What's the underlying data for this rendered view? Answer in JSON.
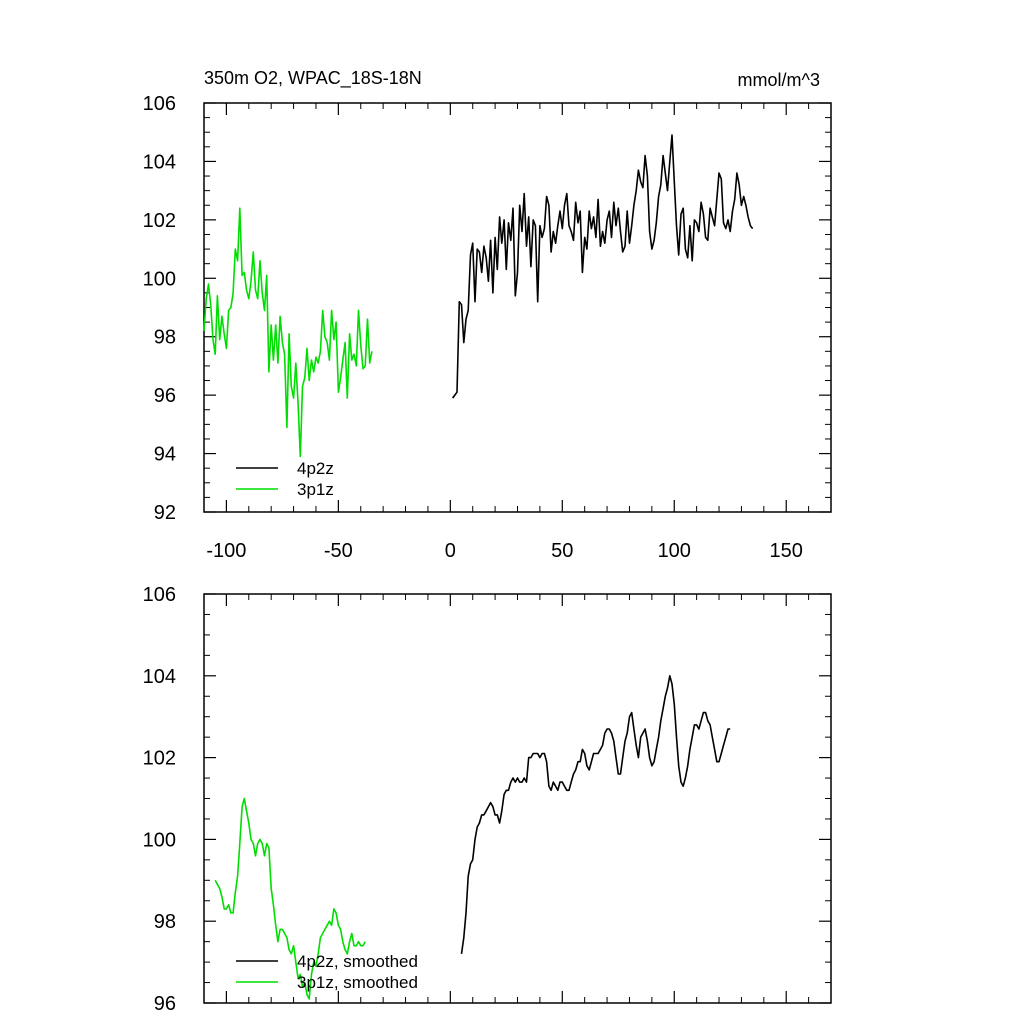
{
  "colors": {
    "series_4p2z": "#000000",
    "series_3p1z": "#00dd00",
    "frame": "#000000"
  },
  "chart_data": [
    {
      "type": "line",
      "title_left": "350m O2, WPAC_18S-18N",
      "title_right": "mmol/m^3",
      "xlim": [
        -110,
        170
      ],
      "ylim": [
        92,
        106
      ],
      "xticks": [
        -100,
        -50,
        0,
        50,
        100,
        150
      ],
      "xtick_labels": [
        "-100",
        "-50",
        "0",
        "50",
        "100",
        "150"
      ],
      "yticks": [
        92,
        94,
        96,
        98,
        100,
        102,
        104,
        106
      ],
      "ytick_labels": [
        "92",
        "94",
        "96",
        "98",
        "100",
        "102",
        "104",
        "106"
      ],
      "legend": [
        "4p2z",
        "3p1z"
      ],
      "series": [
        {
          "name": "3p1z",
          "color": "#00dd00",
          "x0": -110,
          "values": [
            98.2,
            99.3,
            99.8,
            99.1,
            97.9,
            97.4,
            99.4,
            97.9,
            98.7,
            98.1,
            97.6,
            98.9,
            99.0,
            99.5,
            101.0,
            100.6,
            102.4,
            100.1,
            100.2,
            99.6,
            99.3,
            99.9,
            100.9,
            99.6,
            99.3,
            100.6,
            99.5,
            98.9,
            100.1,
            96.8,
            98.4,
            97.2,
            98.4,
            97.1,
            98.7,
            97.8,
            97.4,
            94.9,
            98.1,
            96.3,
            95.9,
            97.1,
            95.7,
            93.9,
            96.3,
            96.6,
            97.6,
            96.5,
            97.2,
            96.8,
            97.3,
            97.1,
            97.5,
            98.9,
            98.0,
            97.8,
            97.2,
            98.9,
            97.9,
            98.5,
            96.1,
            96.6,
            97.2,
            97.8,
            95.9,
            98.1,
            97.2,
            97.4,
            97.0,
            98.9,
            97.7,
            96.9,
            97.0,
            98.6,
            97.1,
            97.5
          ]
        },
        {
          "name": "4p2z",
          "color": "#000000",
          "x0": 1,
          "values": [
            95.9,
            96.0,
            96.1,
            99.2,
            99.1,
            97.8,
            98.6,
            98.9,
            100.8,
            101.2,
            99.2,
            101.0,
            100.9,
            100.2,
            101.1,
            100.7,
            99.9,
            101.3,
            99.5,
            101.4,
            100.3,
            102.1,
            101.2,
            102.0,
            100.3,
            101.9,
            101.3,
            102.4,
            99.4,
            100.2,
            102.5,
            101.6,
            102.9,
            101.1,
            102.1,
            100.4,
            102.0,
            101.8,
            99.2,
            101.8,
            101.4,
            101.7,
            102.8,
            102.5,
            100.9,
            101.6,
            101.2,
            101.8,
            102.3,
            101.7,
            102.5,
            102.9,
            101.8,
            101.6,
            101.3,
            102.6,
            101.9,
            102.3,
            100.2,
            101.4,
            101.0,
            102.3,
            101.7,
            102.1,
            101.4,
            102.7,
            101.1,
            101.6,
            101.2,
            102.0,
            102.3,
            101.4,
            102.6,
            101.8,
            102.4,
            101.6,
            100.9,
            101.1,
            102.3,
            101.2,
            101.8,
            102.5,
            103.0,
            103.7,
            103.3,
            103.1,
            104.2,
            103.5,
            101.6,
            101.0,
            101.3,
            101.9,
            102.8,
            103.2,
            104.2,
            103.6,
            103.0,
            104.0,
            104.9,
            103.3,
            101.8,
            100.8,
            102.2,
            102.4,
            101.0,
            100.7,
            101.8,
            100.6,
            102.0,
            101.9,
            101.6,
            102.6,
            102.2,
            101.4,
            101.3,
            102.4,
            102.1,
            101.8,
            102.7,
            103.6,
            103.4,
            101.9,
            101.7,
            102.0,
            101.6,
            102.3,
            102.7,
            103.6,
            103.2,
            102.5,
            102.8,
            102.5,
            102.1,
            101.8,
            101.7
          ]
        }
      ]
    },
    {
      "type": "line",
      "title_left": "",
      "title_right": "",
      "xlim": [
        -110,
        170
      ],
      "ylim": [
        96,
        106
      ],
      "xticks": [
        -100,
        -50,
        0,
        50,
        100,
        150
      ],
      "xtick_labels": [],
      "yticks": [
        96,
        98,
        100,
        102,
        104,
        106
      ],
      "ytick_labels": [
        "96",
        "98",
        "100",
        "102",
        "104",
        "106"
      ],
      "legend": [
        "4p2z, smoothed",
        "3p1z, smoothed"
      ],
      "series": [
        {
          "name": "3p1z, smoothed",
          "color": "#00dd00",
          "x0": -105,
          "values": [
            99.0,
            98.9,
            98.8,
            98.6,
            98.3,
            98.3,
            98.4,
            98.2,
            98.2,
            98.7,
            99.1,
            99.9,
            100.8,
            101.0,
            100.7,
            100.4,
            100.0,
            99.9,
            99.6,
            99.9,
            100.0,
            99.9,
            99.6,
            99.9,
            99.8,
            98.8,
            98.4,
            97.9,
            97.5,
            97.8,
            97.8,
            97.7,
            97.6,
            97.3,
            97.2,
            97.4,
            97.0,
            96.6,
            96.7,
            96.4,
            96.5,
            96.2,
            96.1,
            96.7,
            97.0,
            96.9,
            97.2,
            97.6,
            97.7,
            97.8,
            97.9,
            98.0,
            97.9,
            98.3,
            98.2,
            97.9,
            97.8,
            97.5,
            97.3,
            97.2,
            97.5,
            97.7,
            97.4,
            97.4,
            97.5,
            97.4,
            97.4,
            97.5
          ]
        },
        {
          "name": "4p2z, smoothed",
          "color": "#000000",
          "x0": 5,
          "values": [
            97.2,
            97.6,
            98.2,
            99.1,
            99.4,
            99.5,
            100.0,
            100.3,
            100.4,
            100.6,
            100.6,
            100.7,
            100.8,
            100.9,
            100.8,
            100.6,
            100.6,
            100.4,
            100.7,
            101.1,
            101.2,
            101.2,
            101.4,
            101.5,
            101.4,
            101.5,
            101.4,
            101.4,
            101.5,
            101.4,
            102.0,
            102.0,
            102.1,
            102.1,
            102.1,
            102.0,
            102.1,
            102.1,
            101.9,
            101.3,
            101.2,
            101.4,
            101.3,
            101.2,
            101.4,
            101.4,
            101.3,
            101.2,
            101.2,
            101.4,
            101.6,
            101.7,
            101.9,
            101.9,
            102.2,
            102.1,
            101.8,
            101.7,
            101.9,
            102.1,
            102.1,
            102.1,
            102.2,
            102.3,
            102.6,
            102.7,
            102.7,
            102.6,
            102.4,
            102.0,
            101.6,
            101.6,
            102.0,
            102.4,
            102.6,
            103.0,
            103.1,
            102.7,
            102.3,
            102.0,
            102.5,
            102.6,
            102.7,
            102.4,
            102.0,
            101.8,
            101.9,
            102.2,
            102.5,
            102.9,
            103.2,
            103.5,
            103.7,
            104.0,
            103.8,
            103.3,
            102.5,
            101.8,
            101.4,
            101.3,
            101.5,
            101.8,
            102.2,
            102.5,
            102.8,
            102.8,
            102.7,
            102.9,
            103.1,
            103.1,
            102.9,
            102.8,
            102.5,
            102.2,
            101.9,
            101.9,
            102.1,
            102.3,
            102.5,
            102.7,
            102.7
          ]
        }
      ]
    }
  ]
}
